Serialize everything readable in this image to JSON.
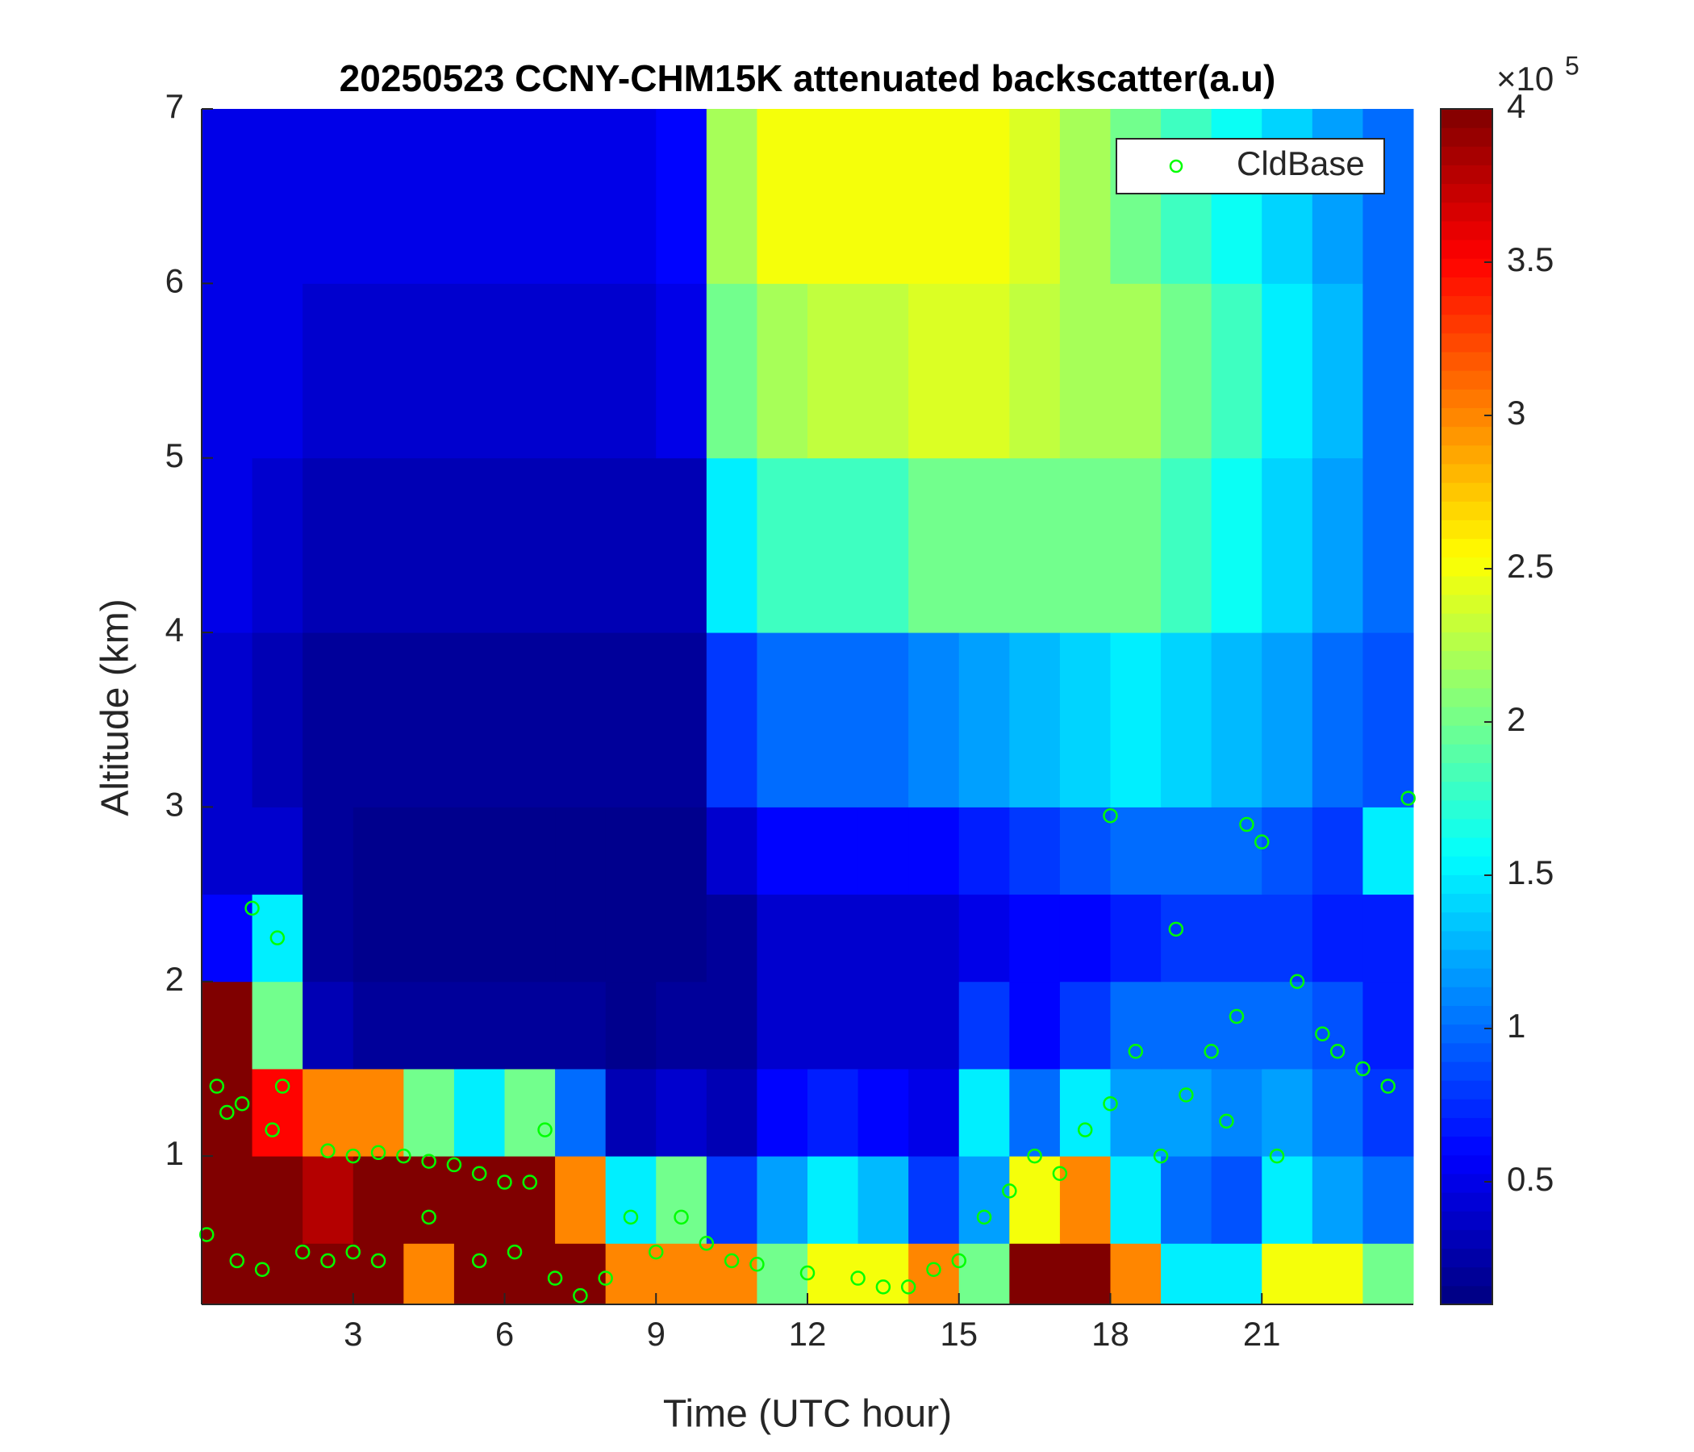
{
  "chart_data": {
    "type": "heatmap",
    "title": "20250523 CCNY-CHM15K attenuated backscatter(a.u)",
    "xlabel": "Time (UTC hour)",
    "ylabel": "Altitude (km)",
    "colormap": "jet",
    "x_bins": [
      0,
      1,
      2,
      3,
      4,
      5,
      6,
      7,
      8,
      9,
      10,
      11,
      12,
      13,
      14,
      15,
      16,
      17,
      18,
      19,
      20,
      21,
      22,
      23,
      24
    ],
    "y_bins": [
      0.15,
      0.5,
      1,
      1.5,
      2,
      2.5,
      3,
      4,
      5,
      6,
      7
    ],
    "z": [
      [
        400000,
        400000,
        400000,
        400000,
        300000,
        400000,
        400000,
        400000,
        300000,
        300000,
        300000,
        200000,
        250000,
        250000,
        300000,
        200000,
        400000,
        400000,
        300000,
        150000,
        150000,
        250000,
        250000,
        200000
      ],
      [
        400000,
        400000,
        380000,
        400000,
        400000,
        400000,
        400000,
        300000,
        150000,
        200000,
        80000,
        120000,
        150000,
        130000,
        80000,
        120000,
        250000,
        300000,
        150000,
        100000,
        90000,
        150000,
        120000,
        100000
      ],
      [
        400000,
        350000,
        300000,
        300000,
        200000,
        150000,
        200000,
        100000,
        30000,
        40000,
        30000,
        60000,
        70000,
        60000,
        50000,
        150000,
        100000,
        150000,
        120000,
        120000,
        110000,
        120000,
        100000,
        80000
      ],
      [
        400000,
        200000,
        30000,
        20000,
        20000,
        20000,
        20000,
        20000,
        15000,
        20000,
        20000,
        40000,
        40000,
        40000,
        40000,
        80000,
        60000,
        80000,
        100000,
        100000,
        100000,
        100000,
        90000,
        70000
      ],
      [
        60000,
        150000,
        20000,
        15000,
        15000,
        15000,
        15000,
        15000,
        15000,
        15000,
        20000,
        40000,
        40000,
        40000,
        40000,
        50000,
        60000,
        60000,
        70000,
        80000,
        80000,
        80000,
        70000,
        70000
      ],
      [
        40000,
        40000,
        20000,
        15000,
        15000,
        15000,
        15000,
        15000,
        15000,
        15000,
        40000,
        60000,
        60000,
        60000,
        60000,
        70000,
        80000,
        90000,
        100000,
        100000,
        100000,
        90000,
        80000,
        150000
      ],
      [
        40000,
        30000,
        20000,
        20000,
        20000,
        20000,
        20000,
        20000,
        20000,
        20000,
        80000,
        100000,
        100000,
        100000,
        110000,
        120000,
        130000,
        140000,
        150000,
        140000,
        130000,
        120000,
        100000,
        90000
      ],
      [
        50000,
        40000,
        30000,
        30000,
        30000,
        30000,
        30000,
        30000,
        30000,
        30000,
        150000,
        180000,
        180000,
        180000,
        200000,
        200000,
        200000,
        200000,
        200000,
        180000,
        160000,
        140000,
        120000,
        100000
      ],
      [
        50000,
        50000,
        40000,
        40000,
        40000,
        40000,
        40000,
        40000,
        40000,
        50000,
        200000,
        220000,
        230000,
        230000,
        240000,
        240000,
        230000,
        220000,
        220000,
        200000,
        180000,
        150000,
        130000,
        100000
      ],
      [
        50000,
        50000,
        50000,
        50000,
        50000,
        50000,
        50000,
        50000,
        50000,
        60000,
        220000,
        250000,
        250000,
        250000,
        250000,
        250000,
        240000,
        220000,
        200000,
        180000,
        160000,
        140000,
        120000,
        100000
      ]
    ],
    "clim": [
      10000,
      400000
    ],
    "colorbar_ticks": [
      {
        "value": 50000,
        "label": "0.5"
      },
      {
        "value": 100000,
        "label": "1"
      },
      {
        "value": 150000,
        "label": "1.5"
      },
      {
        "value": 200000,
        "label": "2"
      },
      {
        "value": 250000,
        "label": "2.5"
      },
      {
        "value": 300000,
        "label": "3"
      },
      {
        "value": 350000,
        "label": "3.5"
      },
      {
        "value": 400000,
        "label": "4"
      }
    ],
    "colorbar_multiplier": "×10",
    "colorbar_exponent": "5",
    "xlim": [
      0,
      24
    ],
    "ylim": [
      0.15,
      7
    ],
    "xticks": [
      3,
      6,
      9,
      12,
      15,
      18,
      21
    ],
    "yticks": [
      1,
      2,
      3,
      4,
      5,
      6,
      7
    ],
    "legend_loc": "upper right",
    "series": [
      {
        "name": "CldBase",
        "type": "scatter",
        "color": "#00ff00",
        "x": [
          0.1,
          0.3,
          0.5,
          0.8,
          1,
          0.7,
          1.2,
          1.5,
          1.6,
          1.4,
          2,
          2.5,
          3,
          3.5,
          4,
          4.5,
          5,
          5.5,
          6,
          6.5,
          6.8,
          2.5,
          3,
          3.5,
          4.5,
          5.5,
          6.2,
          7,
          7.5,
          8,
          8.5,
          9,
          9.5,
          10,
          10.5,
          11,
          12,
          13,
          13.5,
          14,
          14.5,
          15,
          15.5,
          16,
          16.5,
          17,
          17.5,
          18,
          18,
          18.5,
          19,
          19.5,
          20,
          20.5,
          20.7,
          21,
          21.3,
          21.7,
          22.2,
          22.5,
          23,
          23.5,
          23.9,
          19.3,
          20.3
        ],
        "y": [
          0.55,
          1.4,
          1.25,
          1.3,
          2.42,
          0.4,
          0.35,
          2.25,
          1.4,
          1.15,
          0.45,
          1.03,
          1,
          1.02,
          1,
          0.97,
          0.95,
          0.9,
          0.85,
          0.85,
          1.15,
          0.4,
          0.45,
          0.4,
          0.65,
          0.4,
          0.45,
          0.3,
          0.2,
          0.3,
          0.65,
          0.45,
          0.65,
          0.5,
          0.4,
          0.38,
          0.33,
          0.3,
          0.25,
          0.25,
          0.35,
          0.4,
          0.65,
          0.8,
          1,
          0.9,
          1.15,
          1.3,
          2.95,
          1.6,
          1,
          1.35,
          1.6,
          1.8,
          2.9,
          2.8,
          1,
          2,
          1.7,
          1.6,
          1.5,
          1.4,
          3.05,
          2.3,
          1.2
        ]
      }
    ]
  }
}
